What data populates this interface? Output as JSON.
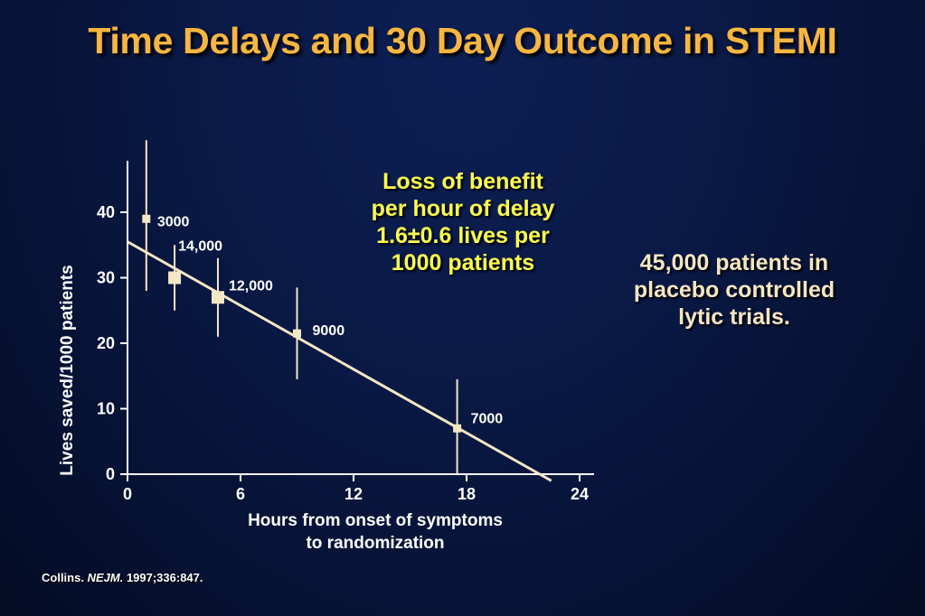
{
  "title": "Time Delays and 30 Day Outcome in STEMI",
  "annotation_loss": {
    "line1": "Loss of benefit",
    "line2": "per hour of delay",
    "line3": "1.6±0.6 lives per",
    "line4": "1000 patients"
  },
  "annotation_patients": {
    "line1": "45,000 patients in",
    "line2": "placebo controlled",
    "line3": "lytic trials."
  },
  "citation": {
    "author": "Collins.",
    "journal": "NEJM.",
    "ref": "1997;336:847."
  },
  "colors": {
    "title": "#f7b641",
    "loss_text": "#ffff4d",
    "patients_text": "#f5e6c4",
    "line": "#f5e6c4",
    "axes": "#ffffff"
  },
  "chart_data": {
    "type": "scatter",
    "xlabel": [
      "Hours from onset of symptoms",
      "to randomization"
    ],
    "ylabel": "Lives saved/1000 patients",
    "xlim": [
      0,
      24
    ],
    "ylim": [
      0,
      40
    ],
    "xticks": [
      0,
      6,
      12,
      18,
      24
    ],
    "yticks": [
      0,
      10,
      20,
      30,
      40
    ],
    "grid": false,
    "points": [
      {
        "x": 1,
        "y": 39,
        "err_low": 28,
        "err_high": 51,
        "label": "3000",
        "marker": "small"
      },
      {
        "x": 2.5,
        "y": 30,
        "err_low": 25,
        "err_high": 35,
        "label": "14,000",
        "marker": "large"
      },
      {
        "x": 4.8,
        "y": 27,
        "err_low": 21,
        "err_high": 33,
        "label": "12,000",
        "marker": "large"
      },
      {
        "x": 9,
        "y": 21.5,
        "err_low": 14.5,
        "err_high": 28.5,
        "label": "9000",
        "marker": "small"
      },
      {
        "x": 17.5,
        "y": 7,
        "err_low": 0,
        "err_high": 14.5,
        "label": "7000",
        "marker": "small"
      }
    ],
    "trend_line": {
      "x": [
        0,
        22.5
      ],
      "y": [
        35.5,
        -1
      ]
    }
  }
}
